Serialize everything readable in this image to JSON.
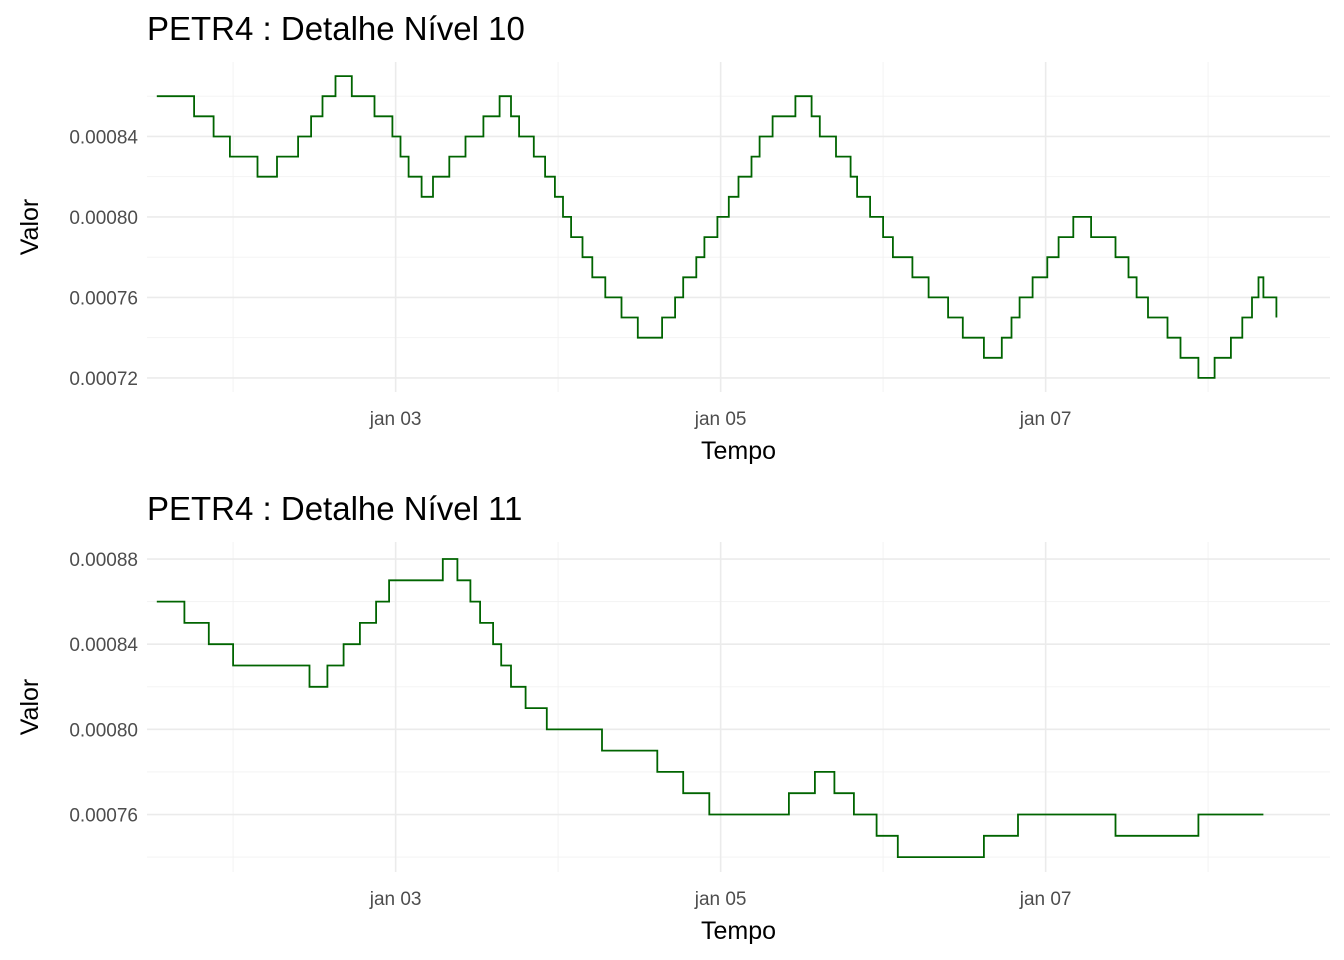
{
  "chart_data": [
    {
      "type": "line",
      "line_style": "step",
      "title": "PETR4 : Detalhe Nível 10",
      "xlabel": "Tempo",
      "ylabel": "Valor",
      "xlim": [
        1.47,
        8.75
      ],
      "ylim": [
        0.000713,
        0.000877
      ],
      "x_ticks": [
        3,
        5,
        7
      ],
      "x_tick_labels": [
        "jan 03",
        "jan 05",
        "jan 07"
      ],
      "x_minor_ticks": [
        2,
        4,
        6,
        8
      ],
      "y_ticks": [
        0.00072,
        0.00076,
        0.0008,
        0.00084
      ],
      "y_tick_labels": [
        "0.00072",
        "0.00076",
        "0.00080",
        "0.00084"
      ],
      "y_minor_ticks": [
        0.00074,
        0.00078,
        0.00082,
        0.00086
      ],
      "grid": true,
      "color": "#006400",
      "series": [
        {
          "x": [
            1.53,
            1.76,
            1.88,
            1.98,
            2.15,
            2.27,
            2.4,
            2.48,
            2.55,
            2.63,
            2.73,
            2.87,
            2.98,
            3.03,
            3.08,
            3.16,
            3.23,
            3.33,
            3.43,
            3.54,
            3.64,
            3.71,
            3.76,
            3.85,
            3.92,
            3.98,
            4.03,
            4.08,
            4.15,
            4.21,
            4.29,
            4.39,
            4.49,
            4.64,
            4.72,
            4.77,
            4.85,
            4.9,
            4.98,
            5.05,
            5.11,
            5.19,
            5.24,
            5.32,
            5.46,
            5.56,
            5.61,
            5.71,
            5.8,
            5.84,
            5.92,
            6.0,
            6.06,
            6.18,
            6.28,
            6.4,
            6.49,
            6.62,
            6.73,
            6.79,
            6.84,
            6.92,
            7.01,
            7.08,
            7.17,
            7.28,
            7.43,
            7.51,
            7.56,
            7.63,
            7.75,
            7.83,
            7.94,
            8.04,
            8.14,
            8.21,
            8.27,
            8.31,
            8.34,
            8.42
          ],
          "y": [
            0.00086,
            0.00085,
            0.00084,
            0.00083,
            0.00082,
            0.00083,
            0.00084,
            0.00085,
            0.00086,
            0.00087,
            0.00086,
            0.00085,
            0.00084,
            0.00083,
            0.00082,
            0.00081,
            0.00082,
            0.00083,
            0.00084,
            0.00085,
            0.00086,
            0.00085,
            0.00084,
            0.00083,
            0.00082,
            0.00081,
            0.0008,
            0.00079,
            0.00078,
            0.00077,
            0.00076,
            0.00075,
            0.00074,
            0.00075,
            0.00076,
            0.00077,
            0.00078,
            0.00079,
            0.0008,
            0.00081,
            0.00082,
            0.00083,
            0.00084,
            0.00085,
            0.00086,
            0.00085,
            0.00084,
            0.00083,
            0.00082,
            0.00081,
            0.0008,
            0.00079,
            0.00078,
            0.00077,
            0.00076,
            0.00075,
            0.00074,
            0.00073,
            0.00074,
            0.00075,
            0.00076,
            0.00077,
            0.00078,
            0.00079,
            0.0008,
            0.00079,
            0.00078,
            0.00077,
            0.00076,
            0.00075,
            0.00074,
            0.00073,
            0.00072,
            0.00073,
            0.00074,
            0.00075,
            0.00076,
            0.00077,
            0.00076,
            0.00075
          ]
        }
      ]
    },
    {
      "type": "line",
      "line_style": "step",
      "title": "PETR4 : Detalhe Nível 11",
      "xlabel": "Tempo",
      "ylabel": "Valor",
      "xlim": [
        1.47,
        8.75
      ],
      "ylim": [
        0.000733,
        0.000888
      ],
      "x_ticks": [
        3,
        5,
        7
      ],
      "x_tick_labels": [
        "jan 03",
        "jan 05",
        "jan 07"
      ],
      "x_minor_ticks": [
        2,
        4,
        6,
        8
      ],
      "y_ticks": [
        0.00076,
        0.0008,
        0.00084,
        0.00088
      ],
      "y_tick_labels": [
        "0.00076",
        "0.00080",
        "0.00084",
        "0.00088"
      ],
      "y_minor_ticks": [
        0.00074,
        0.00078,
        0.00082,
        0.00086
      ],
      "grid": true,
      "color": "#006400",
      "series": [
        {
          "x": [
            1.53,
            1.7,
            1.85,
            2.0,
            2.47,
            2.58,
            2.68,
            2.78,
            2.88,
            2.96,
            3.29,
            3.38,
            3.46,
            3.52,
            3.6,
            3.65,
            3.71,
            3.8,
            3.93,
            4.27,
            4.61,
            4.77,
            4.93,
            5.42,
            5.58,
            5.7,
            5.82,
            5.96,
            6.09,
            6.62,
            6.83,
            7.43,
            7.94,
            8.34
          ],
          "y": [
            0.00086,
            0.00085,
            0.00084,
            0.00083,
            0.00082,
            0.00083,
            0.00084,
            0.00085,
            0.00086,
            0.00087,
            0.00088,
            0.00087,
            0.00086,
            0.00085,
            0.00084,
            0.00083,
            0.00082,
            0.00081,
            0.0008,
            0.00079,
            0.00078,
            0.00077,
            0.00076,
            0.00077,
            0.00078,
            0.00077,
            0.00076,
            0.00075,
            0.00074,
            0.00075,
            0.00076,
            0.00075,
            0.00076,
            0.00076
          ]
        }
      ]
    }
  ]
}
